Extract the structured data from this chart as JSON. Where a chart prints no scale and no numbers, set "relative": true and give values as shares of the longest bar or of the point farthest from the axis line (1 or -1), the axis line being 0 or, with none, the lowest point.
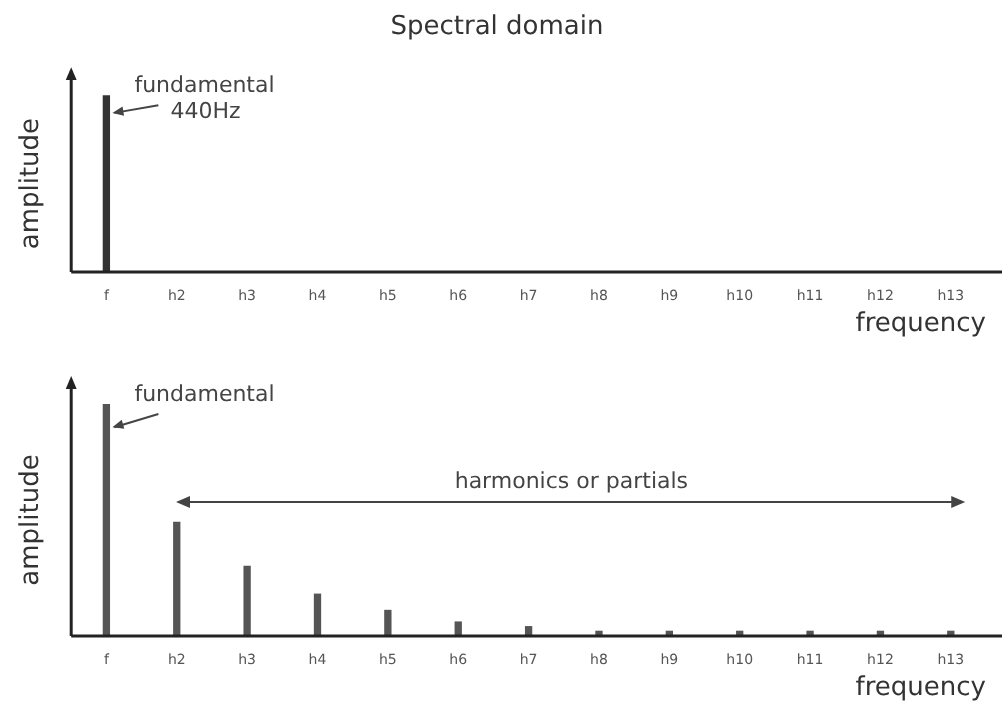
{
  "chart_data": [
    {
      "type": "bar",
      "title": "Spectral domain",
      "xlabel": "frequency",
      "ylabel": "amplitude",
      "relative": true,
      "categories": [
        "f",
        "h2",
        "h3",
        "h4",
        "h5",
        "h6",
        "h7",
        "h8",
        "h9",
        "h10",
        "h11",
        "h12",
        "h13"
      ],
      "values": [
        1,
        0,
        0,
        0,
        0,
        0,
        0,
        0,
        0,
        0,
        0,
        0,
        0
      ],
      "color": "#333333",
      "annotations": [
        {
          "text": "fundamental\n440Hz",
          "x": "f",
          "y": 0.9
        }
      ],
      "grid": false,
      "legend": false
    },
    {
      "type": "bar",
      "xlabel": "frequency",
      "ylabel": "amplitude",
      "relative": true,
      "categories": [
        "f",
        "h2",
        "h3",
        "h4",
        "h5",
        "h6",
        "h7",
        "h8",
        "h9",
        "h10",
        "h11",
        "h12",
        "h13"
      ],
      "values": [
        1,
        0.49,
        0.3,
        0.18,
        0.11,
        0.06,
        0.04,
        0.02,
        0.02,
        0.02,
        0.02,
        0.02,
        0.02
      ],
      "color": "#555555",
      "annotations": [
        {
          "text": "fundamental",
          "x": "f",
          "y": 0.9
        },
        "harmonics or partials"
      ],
      "grid": false,
      "legend": false
    }
  ]
}
